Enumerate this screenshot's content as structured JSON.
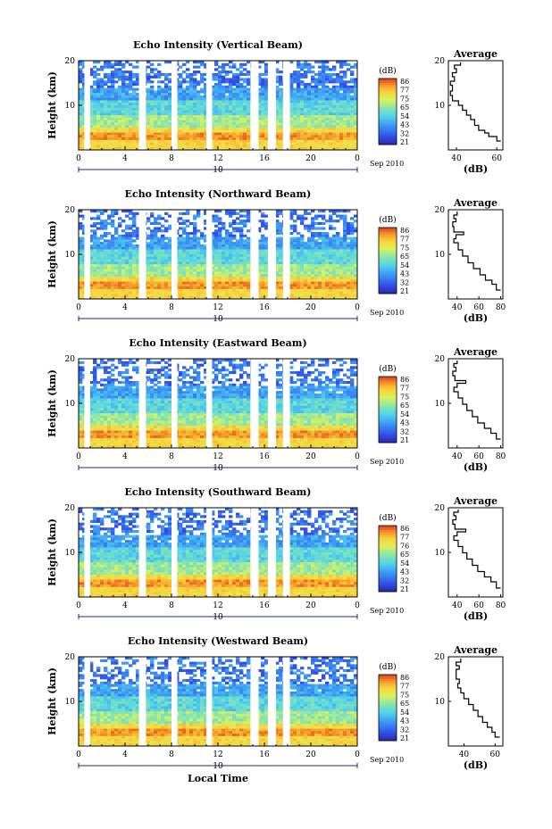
{
  "chart_data": [
    {
      "type": "heatmap",
      "title": "Echo Intensity (Vertical Beam)",
      "ylabel": "Height (km)",
      "y_ticks": [
        "20",
        "10"
      ],
      "x_ticks": [
        "0",
        "4",
        "8",
        "12",
        "16",
        "20",
        "0"
      ],
      "date_day": "10",
      "date_month": "Sep 2010",
      "colorbar_unit": "(dB)",
      "colorbar_ticks": [
        "86",
        "77",
        "75",
        "65",
        "54",
        "43",
        "32",
        "21"
      ],
      "avg_title": "Average",
      "avg_y_ticks": [
        "20",
        "10"
      ],
      "avg_x_ticks": [
        "40",
        "60"
      ],
      "avg_xlabel": "(dB)",
      "avg_xlim": [
        36,
        63
      ],
      "avg_profile": [
        [
          62,
          2.0
        ],
        [
          60,
          3.0
        ],
        [
          56,
          3.8
        ],
        [
          54,
          4.4
        ],
        [
          51,
          5.5
        ],
        [
          49,
          6.8
        ],
        [
          47,
          7.8
        ],
        [
          45,
          8.9
        ],
        [
          43,
          10.0
        ],
        [
          41,
          11.0
        ],
        [
          38,
          12.2
        ],
        [
          37,
          13.2
        ],
        [
          38,
          14.5
        ],
        [
          37,
          15.4
        ],
        [
          39,
          16.4
        ],
        [
          38,
          17.3
        ],
        [
          40,
          18.2
        ],
        [
          39,
          19.0
        ],
        [
          42,
          19.6
        ]
      ]
    },
    {
      "type": "heatmap",
      "title": "Echo Intensity (Northward Beam)",
      "ylabel": "Height (km)",
      "y_ticks": [
        "20",
        "10"
      ],
      "x_ticks": [
        "0",
        "4",
        "8",
        "12",
        "16",
        "20",
        "0"
      ],
      "date_day": "10",
      "date_month": "Sep 2010",
      "colorbar_unit": "(dB)",
      "colorbar_ticks": [
        "86",
        "77",
        "75",
        "65",
        "54",
        "43",
        "32",
        "21"
      ],
      "avg_title": "Average",
      "avg_y_ticks": [
        "20",
        "10"
      ],
      "avg_x_ticks": [
        "40",
        "60",
        "80"
      ],
      "avg_xlabel": "(dB)",
      "avg_xlim": [
        32,
        82
      ],
      "avg_profile": [
        [
          80,
          2.0
        ],
        [
          76,
          3.3
        ],
        [
          72,
          4.2
        ],
        [
          66,
          5.4
        ],
        [
          61,
          6.8
        ],
        [
          55,
          8.1
        ],
        [
          50,
          9.6
        ],
        [
          45,
          11.0
        ],
        [
          41,
          12.6
        ],
        [
          37,
          13.5
        ],
        [
          39,
          14.4
        ],
        [
          46,
          15.0
        ],
        [
          37,
          16.2
        ],
        [
          36,
          17.3
        ],
        [
          39,
          18.0
        ],
        [
          37,
          18.8
        ],
        [
          40,
          19.6
        ]
      ]
    },
    {
      "type": "heatmap",
      "title": "Echo Intensity (Eastward Beam)",
      "ylabel": "Height (km)",
      "y_ticks": [
        "20",
        "10"
      ],
      "x_ticks": [
        "0",
        "4",
        "8",
        "12",
        "16",
        "20",
        "0"
      ],
      "date_day": "10",
      "date_month": "Sep 2010",
      "colorbar_unit": "(dB)",
      "colorbar_ticks": [
        "86",
        "77",
        "75",
        "65",
        "54",
        "43",
        "32",
        "21"
      ],
      "avg_title": "Average",
      "avg_y_ticks": [
        "20",
        "10"
      ],
      "avg_x_ticks": [
        "40",
        "60",
        "80"
      ],
      "avg_xlabel": "(dB)",
      "avg_xlim": [
        32,
        82
      ],
      "avg_profile": [
        [
          80,
          2.0
        ],
        [
          76,
          3.3
        ],
        [
          71,
          4.4
        ],
        [
          65,
          5.6
        ],
        [
          59,
          7.0
        ],
        [
          54,
          8.4
        ],
        [
          49,
          9.8
        ],
        [
          45,
          11.2
        ],
        [
          41,
          12.6
        ],
        [
          37,
          13.6
        ],
        [
          40,
          14.5
        ],
        [
          48,
          15.1
        ],
        [
          38,
          16.2
        ],
        [
          36,
          17.2
        ],
        [
          39,
          18.1
        ],
        [
          37,
          18.9
        ],
        [
          40,
          19.6
        ]
      ]
    },
    {
      "type": "heatmap",
      "title": "Echo Intensity (Southward Beam)",
      "ylabel": "Height (km)",
      "y_ticks": [
        "20",
        "10"
      ],
      "x_ticks": [
        "0",
        "4",
        "8",
        "12",
        "16",
        "20",
        "0"
      ],
      "date_day": "10",
      "date_month": "Sep 2010",
      "colorbar_unit": "(dB)",
      "colorbar_ticks": [
        "86",
        "77",
        "76",
        "65",
        "54",
        "43",
        "32",
        "21"
      ],
      "avg_title": "Average",
      "avg_y_ticks": [
        "20",
        "10"
      ],
      "avg_x_ticks": [
        "40",
        "60",
        "80"
      ],
      "avg_xlabel": "(dB)",
      "avg_xlim": [
        32,
        82
      ],
      "avg_profile": [
        [
          80,
          2.0
        ],
        [
          76,
          3.4
        ],
        [
          71,
          4.5
        ],
        [
          65,
          5.7
        ],
        [
          59,
          7.1
        ],
        [
          54,
          8.5
        ],
        [
          49,
          9.9
        ],
        [
          45,
          11.3
        ],
        [
          41,
          12.7
        ],
        [
          37,
          13.7
        ],
        [
          40,
          14.6
        ],
        [
          48,
          15.2
        ],
        [
          38,
          16.3
        ],
        [
          36,
          17.3
        ],
        [
          39,
          18.2
        ],
        [
          37,
          19.0
        ],
        [
          41,
          19.6
        ]
      ]
    },
    {
      "type": "heatmap",
      "title": "Echo Intensity (Westward Beam)",
      "ylabel": "Height (km)",
      "xlabel": "Local Time",
      "y_ticks": [
        "20",
        "10"
      ],
      "x_ticks": [
        "0",
        "4",
        "8",
        "12",
        "16",
        "20",
        "0"
      ],
      "date_day": "10",
      "date_month": "Sep 2010",
      "colorbar_unit": "(dB)",
      "colorbar_ticks": [
        "86",
        "77",
        "75",
        "65",
        "54",
        "43",
        "32",
        "21"
      ],
      "avg_title": "Average",
      "avg_y_ticks": [
        "20",
        "10"
      ],
      "avg_x_ticks": [
        "40",
        "60"
      ],
      "avg_xlabel": "(dB)",
      "avg_xlim": [
        30,
        65
      ],
      "avg_profile": [
        [
          63,
          2.0
        ],
        [
          60,
          3.1
        ],
        [
          58,
          4.2
        ],
        [
          55,
          5.3
        ],
        [
          52,
          6.6
        ],
        [
          49,
          8.0
        ],
        [
          46,
          9.3
        ],
        [
          43,
          10.6
        ],
        [
          40,
          11.9
        ],
        [
          38,
          13.0
        ],
        [
          36,
          14.0
        ],
        [
          37,
          15.0
        ],
        [
          35,
          16.0
        ],
        [
          35,
          17.2
        ],
        [
          37,
          18.0
        ],
        [
          35,
          18.8
        ],
        [
          38,
          19.6
        ]
      ]
    }
  ]
}
